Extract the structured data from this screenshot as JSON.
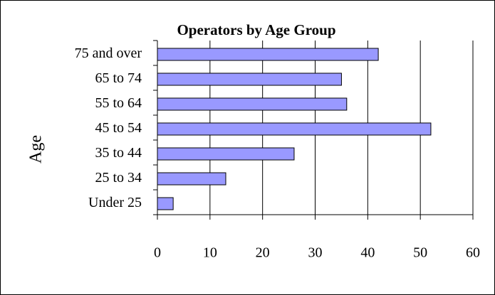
{
  "chart_data": {
    "type": "bar",
    "orientation": "horizontal",
    "title": "Operators by Age Group",
    "y_label": "Age",
    "categories": [
      "75 and over",
      "65 to 74",
      "55 to 64",
      "45 to 54",
      "35 to 44",
      "25 to 34",
      "Under 25"
    ],
    "values": [
      42,
      35,
      36,
      52,
      26,
      13,
      3
    ],
    "color": "#9999ff",
    "xlim": [
      0,
      60
    ],
    "xticks": [
      0,
      10,
      20,
      30,
      40,
      50,
      60
    ],
    "grid": true
  }
}
